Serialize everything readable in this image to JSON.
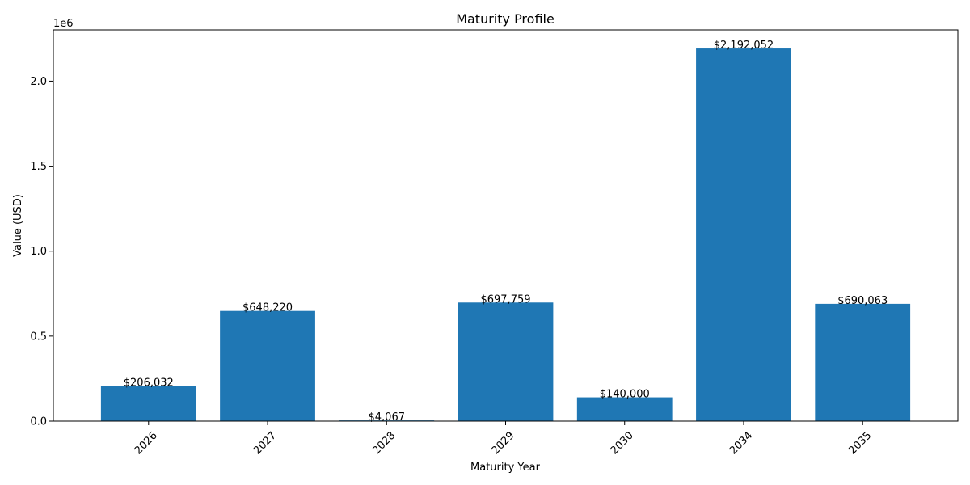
{
  "chart_data": {
    "type": "bar",
    "title": "Maturity Profile",
    "xlabel": "Maturity Year",
    "ylabel": "Value (USD)",
    "categories": [
      "2026",
      "2027",
      "2028",
      "2029",
      "2030",
      "2034",
      "2035"
    ],
    "values": [
      206032,
      648220,
      4067,
      697759,
      140000,
      2192052,
      690063
    ],
    "data_labels": [
      "$206,032",
      "$648,220",
      "$4,067",
      "$697,759",
      "$140,000",
      "$2,192,052",
      "$690,063"
    ],
    "ylim": [
      0,
      2301654.6
    ],
    "yticks": [
      0,
      500000,
      1000000,
      1500000,
      2000000
    ],
    "ytick_labels": [
      "0.0",
      "0.5",
      "1.0",
      "1.5",
      "2.0"
    ],
    "y_offset_label": "1e6",
    "bar_color": "#1f77b4",
    "grid": false,
    "x_tick_rotation": 45
  }
}
